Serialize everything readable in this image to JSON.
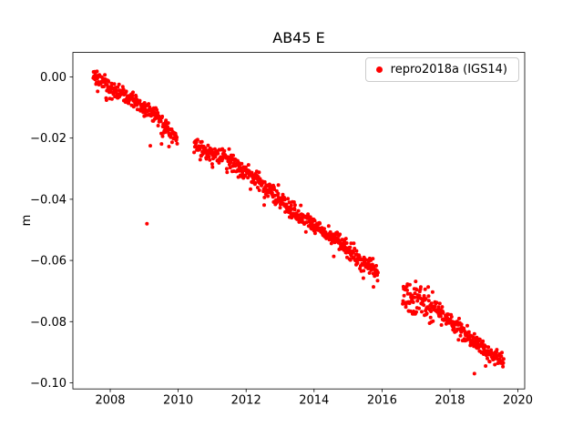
{
  "chart_data": {
    "type": "scatter",
    "title": "AB45 E",
    "xlabel": "",
    "ylabel": "m",
    "grid": false,
    "background": "#ffffff",
    "xlim": [
      2006.9,
      2020.2
    ],
    "ylim": [
      -0.102,
      0.008
    ],
    "xticks": [
      2008,
      2010,
      2012,
      2014,
      2016,
      2018,
      2020
    ],
    "xtick_labels": [
      "2008",
      "2010",
      "2012",
      "2014",
      "2016",
      "2018",
      "2020"
    ],
    "yticks": [
      0.0,
      -0.02,
      -0.04,
      -0.06,
      -0.08,
      -0.1
    ],
    "ytick_labels": [
      "0.00",
      "−0.02",
      "−0.04",
      "−0.06",
      "−0.08",
      "−0.10"
    ],
    "legend": {
      "label": "repro2018a (IGS14)",
      "marker_color": "#ff0000",
      "position": "upper right"
    },
    "series": [
      {
        "name": "repro2018a (IGS14)",
        "color": "#ff0000",
        "marker": "dot",
        "marker_radius_px": 2,
        "x_start": 2007.5,
        "x_end": 2019.58,
        "sample_step_years": 0.01,
        "noise_sigma": 0.0013,
        "noise_regions": [
          {
            "x0": 2007.5,
            "x1": 2008.0,
            "sigma": 0.0018
          },
          {
            "x0": 2016.6,
            "x1": 2017.5,
            "sigma": 0.0028
          }
        ],
        "gaps": [
          [
            2009.97,
            2010.46
          ],
          [
            2015.88,
            2016.6
          ]
        ],
        "trend": [
          [
            2007.5,
            0.0
          ],
          [
            2007.8,
            -0.002
          ],
          [
            2008.1,
            -0.0045
          ],
          [
            2008.45,
            -0.006
          ],
          [
            2008.8,
            -0.0085
          ],
          [
            2009.1,
            -0.011
          ],
          [
            2009.35,
            -0.0125
          ],
          [
            2009.55,
            -0.0155
          ],
          [
            2009.75,
            -0.018
          ],
          [
            2009.97,
            -0.021
          ],
          [
            2010.46,
            -0.0225
          ],
          [
            2010.8,
            -0.024
          ],
          [
            2011.05,
            -0.0255
          ],
          [
            2011.35,
            -0.026
          ],
          [
            2011.65,
            -0.028
          ],
          [
            2011.95,
            -0.0305
          ],
          [
            2012.2,
            -0.0325
          ],
          [
            2012.5,
            -0.0355
          ],
          [
            2012.8,
            -0.0385
          ],
          [
            2013.1,
            -0.0415
          ],
          [
            2013.4,
            -0.044
          ],
          [
            2013.7,
            -0.046
          ],
          [
            2014.0,
            -0.0485
          ],
          [
            2014.3,
            -0.0505
          ],
          [
            2014.6,
            -0.053
          ],
          [
            2014.9,
            -0.0555
          ],
          [
            2015.2,
            -0.0585
          ],
          [
            2015.5,
            -0.0605
          ],
          [
            2015.88,
            -0.065
          ],
          [
            2016.6,
            -0.0705
          ],
          [
            2016.85,
            -0.0725
          ],
          [
            2017.1,
            -0.0715
          ],
          [
            2017.35,
            -0.074
          ],
          [
            2017.6,
            -0.0765
          ],
          [
            2017.9,
            -0.079
          ],
          [
            2018.2,
            -0.0815
          ],
          [
            2018.5,
            -0.084
          ],
          [
            2018.8,
            -0.0875
          ],
          [
            2019.1,
            -0.0895
          ],
          [
            2019.35,
            -0.091
          ],
          [
            2019.58,
            -0.092
          ]
        ],
        "outliers": [
          [
            2009.08,
            -0.048
          ],
          [
            2009.18,
            -0.0225
          ],
          [
            2018.72,
            -0.097
          ],
          [
            2019.05,
            -0.0945
          ]
        ]
      }
    ]
  }
}
